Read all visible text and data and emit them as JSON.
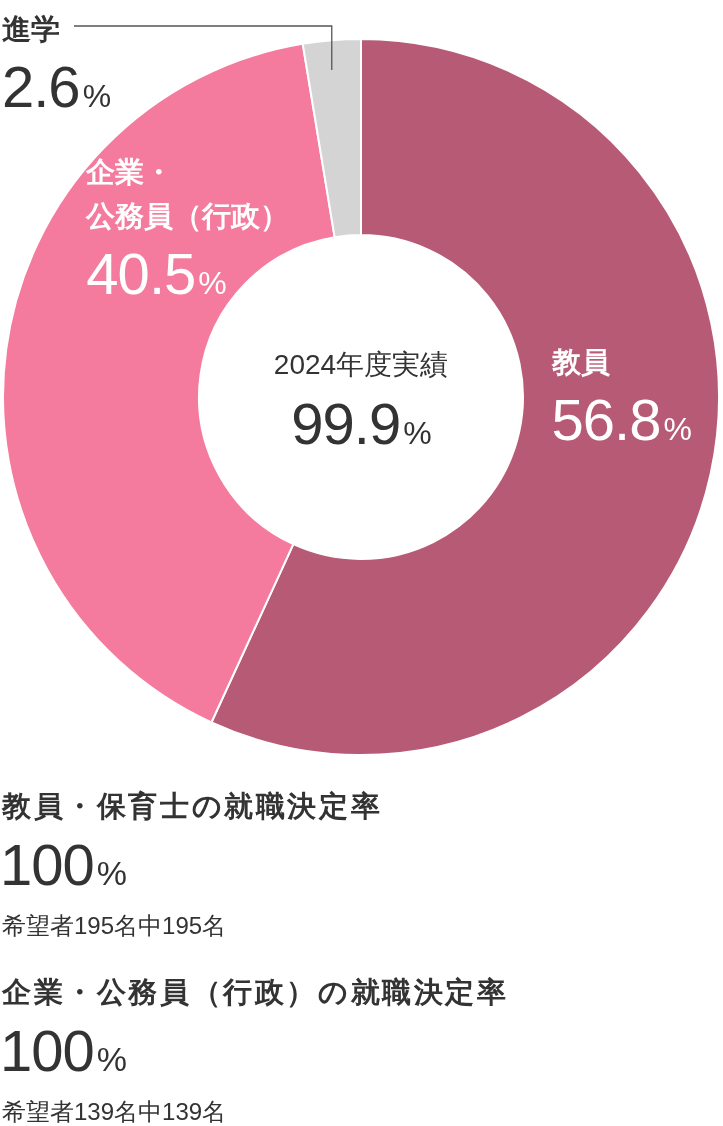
{
  "chart_data": {
    "type": "donut",
    "title": "2024年度実績",
    "categories": [
      "教員",
      "企業・公務員（行政）",
      "進学"
    ],
    "values": [
      56.8,
      40.5,
      2.6
    ],
    "colors": [
      "#b75a76",
      "#f47b9d",
      "#d4d4d4"
    ],
    "value_labels": [
      "56.8%",
      "40.5%",
      "2.6%"
    ],
    "annotations": [
      "99.9%",
      "教員・保育士の就職決定率",
      "100%",
      "希望者195名中195名",
      "企業・公務員（行政）の就職決定率",
      "100%",
      "希望者139名中139名"
    ]
  }
}
